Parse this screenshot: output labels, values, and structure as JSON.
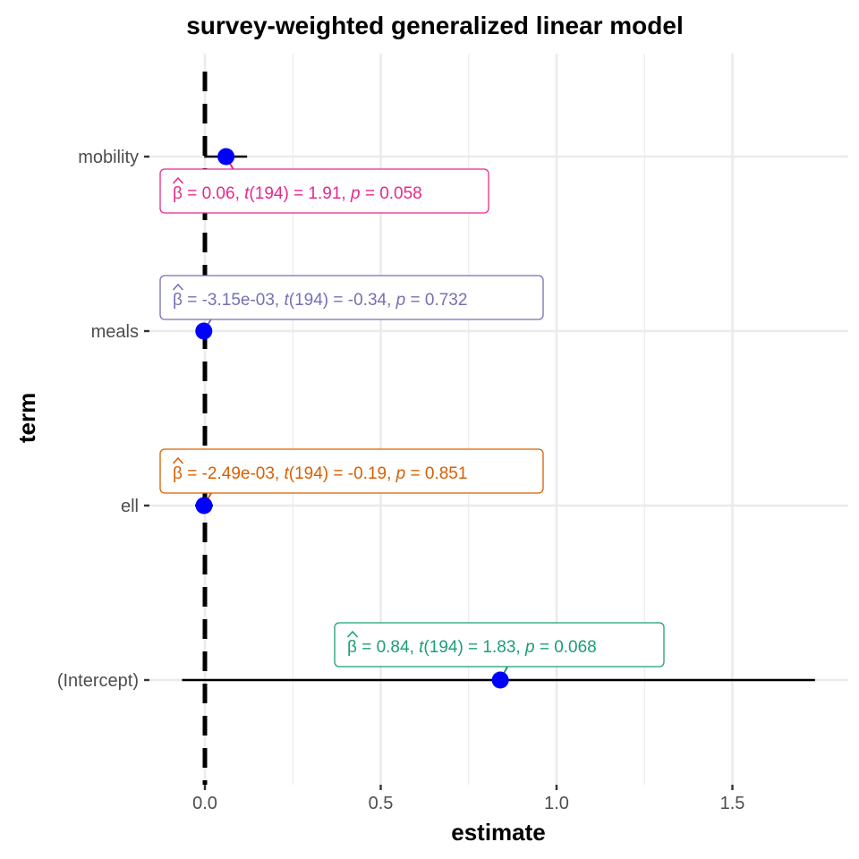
{
  "chart_data": {
    "type": "scatter",
    "title": "survey-weighted generalized linear model",
    "xlabel": "estimate",
    "ylabel": "term",
    "xlim": [
      -0.14,
      1.82
    ],
    "x_ticks": [
      0.0,
      0.5,
      1.0,
      1.5
    ],
    "x_tick_labels": [
      "0.0",
      "0.5",
      "1.0",
      "1.5"
    ],
    "grid": true,
    "reference_line_x": 0,
    "point_color": "#0000ff",
    "categories": [
      "mobility",
      "meals",
      "ell",
      "(Intercept)"
    ],
    "points": [
      {
        "term": "mobility",
        "estimate": 0.06,
        "ci_low": -0.002,
        "ci_high": 0.12,
        "label_color": "#e7298a",
        "label": {
          "beta": "0.06",
          "df": "194",
          "t": "1.91",
          "p": "0.058"
        }
      },
      {
        "term": "meals",
        "estimate": -0.00315,
        "ci_low": -0.021,
        "ci_high": 0.015,
        "label_color": "#7570b3",
        "label": {
          "beta": "-3.15e-03",
          "df": "194",
          "t": "-0.34",
          "p": "0.732"
        }
      },
      {
        "term": "ell",
        "estimate": -0.00249,
        "ci_low": -0.028,
        "ci_high": 0.023,
        "label_color": "#d95f02",
        "label": {
          "beta": "-2.49e-03",
          "df": "194",
          "t": "-0.19",
          "p": "0.851"
        }
      },
      {
        "term": "(Intercept)",
        "estimate": 0.84,
        "ci_low": -0.065,
        "ci_high": 1.735,
        "label_color": "#1b9e77",
        "label": {
          "beta": "0.84",
          "df": "194",
          "t": "1.83",
          "p": "0.068"
        }
      }
    ]
  }
}
